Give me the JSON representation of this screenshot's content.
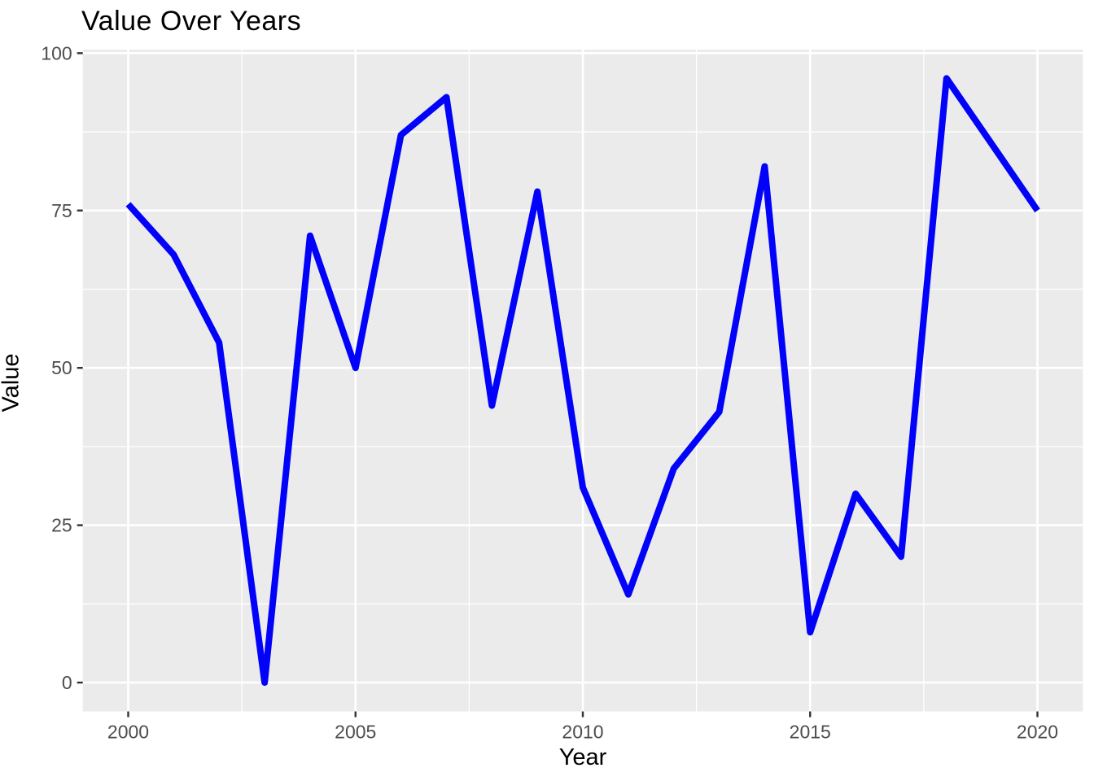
{
  "chart_data": {
    "type": "line",
    "title": "Value Over Years",
    "xlabel": "Year",
    "ylabel": "Value",
    "series": [
      {
        "name": "Value",
        "x": [
          2000,
          2001,
          2002,
          2003,
          2004,
          2005,
          2006,
          2007,
          2008,
          2009,
          2010,
          2011,
          2012,
          2013,
          2014,
          2015,
          2016,
          2017,
          2018,
          2019,
          2020
        ],
        "values": [
          76,
          68,
          54,
          0,
          71,
          50,
          87,
          93,
          44,
          78,
          31,
          14,
          34,
          43,
          82,
          8,
          30,
          20,
          96,
          85.5,
          75
        ]
      }
    ],
    "x_ticks": [
      2000,
      2005,
      2010,
      2015,
      2020
    ],
    "y_ticks": [
      0,
      25,
      50,
      75,
      100
    ],
    "x_minor_ticks": [
      2002.5,
      2007.5,
      2012.5,
      2017.5
    ],
    "y_minor_ticks": [
      12.5,
      37.5,
      62.5,
      87.5
    ],
    "xlim": [
      1999,
      2021
    ],
    "ylim": [
      -4.6,
      100.8
    ],
    "grid": "major-and-minor",
    "legend_position": "none",
    "colors": {
      "line": "#0202FA",
      "panel_background": "#EBEBEB",
      "gridline": "#FFFFFF",
      "tick_label": "#4D4D4D",
      "tick_mark": "#333333",
      "title_text": "#000000"
    }
  }
}
